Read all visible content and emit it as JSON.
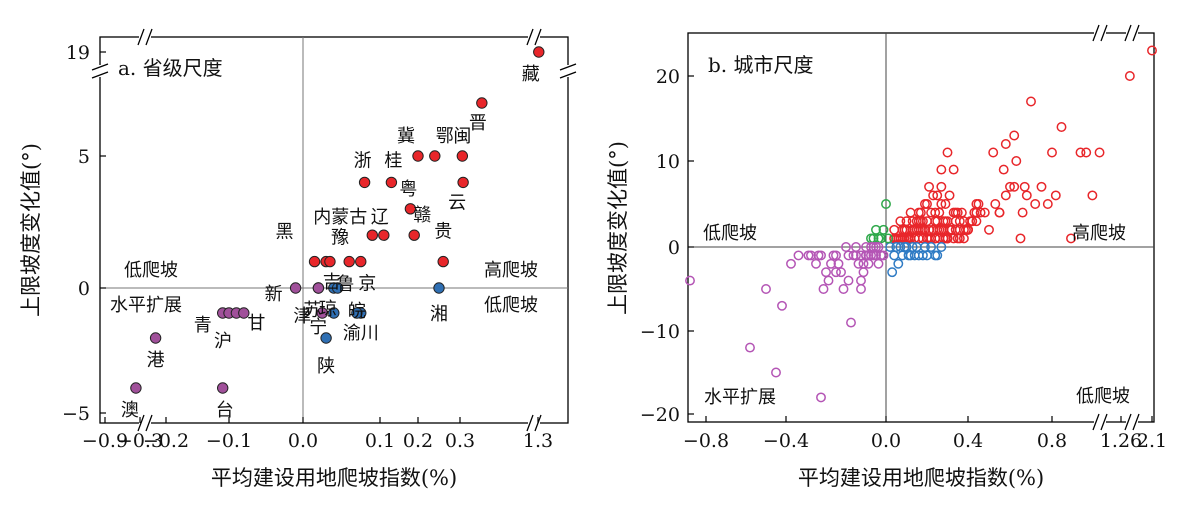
{
  "chart_data": [
    {
      "type": "scatter",
      "title": "a. 省级尺度",
      "xlabel": "平均建设用地爬坡指数(%)",
      "ylabel": "上限坡度变化值(°)",
      "x_ticks": [
        "−0.9",
        "−0.3",
        "−0.2",
        "−0.1",
        "0.0",
        "0.1",
        "0.2",
        "0.3",
        "1.3"
      ],
      "y_ticks": [
        "−5",
        "0",
        "5",
        "19"
      ],
      "x_axis_breaks": [
        -0.3,
        0.3
      ],
      "y_axis_breaks": [
        7
      ],
      "quadrant_labels": [
        "低爬坡",
        "水平扩展",
        "高爬坡",
        "低爬坡"
      ],
      "colors": {
        "high_climbing": "#e8262a",
        "low_climbing": "#2f6fb3",
        "horizontal_expansion": "#a0509a",
        "marker_edge": "#222222",
        "zero_line": "#777777"
      },
      "points": [
        {
          "label": "藏",
          "x": 1.31,
          "y": 19,
          "group": "high_climbing"
        },
        {
          "label": "晋",
          "x": 0.58,
          "y": 7,
          "group": "high_climbing"
        },
        {
          "label": "冀",
          "x": 0.2,
          "y": 5,
          "group": "high_climbing"
        },
        {
          "label": "鄂",
          "x": 0.24,
          "y": 5,
          "group": "high_climbing"
        },
        {
          "label": "闽",
          "x": 0.33,
          "y": 5,
          "group": "high_climbing"
        },
        {
          "label": "浙",
          "x": 0.08,
          "y": 4,
          "group": "high_climbing"
        },
        {
          "label": "桂",
          "x": 0.13,
          "y": 4,
          "group": "high_climbing"
        },
        {
          "label": "云",
          "x": 0.34,
          "y": 4,
          "group": "high_climbing"
        },
        {
          "label": "粤",
          "x": 0.18,
          "y": 3,
          "group": "high_climbing"
        },
        {
          "label": "内蒙古",
          "x": 0.09,
          "y": 2,
          "group": "high_climbing"
        },
        {
          "label": "辽",
          "x": 0.11,
          "y": 2,
          "group": "high_climbing"
        },
        {
          "label": "赣",
          "x": 0.19,
          "y": 2,
          "group": "high_climbing"
        },
        {
          "label": "黑",
          "x": 0.015,
          "y": 1,
          "group": "high_climbing"
        },
        {
          "label": "豫",
          "x": 0.03,
          "y": 1,
          "group": "high_climbing"
        },
        {
          "label": "",
          "x": 0.035,
          "y": 1,
          "group": "high_climbing"
        },
        {
          "label": "京",
          "x": 0.06,
          "y": 1,
          "group": "high_climbing"
        },
        {
          "label": "",
          "x": 0.075,
          "y": 1,
          "group": "high_climbing"
        },
        {
          "label": "贵",
          "x": 0.26,
          "y": 1,
          "group": "high_climbing"
        },
        {
          "label": "苏",
          "x": 0.02,
          "y": 0,
          "group": "low_climbing"
        },
        {
          "label": "吉",
          "x": 0.04,
          "y": 0,
          "group": "low_climbing"
        },
        {
          "label": "鲁",
          "x": 0.045,
          "y": 0,
          "group": "low_climbing"
        },
        {
          "label": "湘",
          "x": 0.25,
          "y": 0,
          "group": "low_climbing"
        },
        {
          "label": "琼",
          "x": 0.04,
          "y": -1,
          "group": "low_climbing"
        },
        {
          "label": "皖",
          "x": 0.075,
          "y": -1,
          "group": "low_climbing"
        },
        {
          "label": "渝川",
          "x": 0.07,
          "y": -1,
          "group": "low_climbing"
        },
        {
          "label": "陕",
          "x": 0.03,
          "y": -2,
          "group": "low_climbing"
        },
        {
          "label": "新",
          "x": -0.01,
          "y": 0,
          "group": "horizontal_expansion"
        },
        {
          "label": "津",
          "x": 0.02,
          "y": 0,
          "group": "horizontal_expansion"
        },
        {
          "label": "宁",
          "x": 0.025,
          "y": -1,
          "group": "horizontal_expansion"
        },
        {
          "label": "青",
          "x": -0.11,
          "y": -1,
          "group": "horizontal_expansion"
        },
        {
          "label": "沪",
          "x": -0.1,
          "y": -1,
          "group": "horizontal_expansion"
        },
        {
          "label": "甘",
          "x": -0.09,
          "y": -1,
          "group": "horizontal_expansion"
        },
        {
          "label": "",
          "x": -0.08,
          "y": -1,
          "group": "horizontal_expansion"
        },
        {
          "label": "港",
          "x": -0.24,
          "y": -2,
          "group": "horizontal_expansion"
        },
        {
          "label": "澳",
          "x": -0.37,
          "y": -4,
          "group": "horizontal_expansion"
        },
        {
          "label": "台",
          "x": -0.11,
          "y": -4,
          "group": "horizontal_expansion"
        }
      ]
    },
    {
      "type": "scatter",
      "title": "b. 城市尺度",
      "xlabel": "平均建设用地爬坡指数(%)",
      "ylabel": "上限坡度变化值(°)",
      "x_ticks": [
        "−0.8",
        "−0.4",
        "0.0",
        "0.4",
        "0.8",
        "1.26",
        "2.1"
      ],
      "y_ticks": [
        "−20",
        "−10",
        "0",
        "10",
        "20"
      ],
      "ylim": [
        -20,
        24
      ],
      "quadrant_labels": [
        "低爬坡",
        "高爬坡",
        "水平扩展",
        "低爬坡"
      ],
      "colors": {
        "high_climbing": "#e8262a",
        "low_climbing": "#2f7bc4",
        "horizontal_expansion": "#b455b5",
        "other": "#2ea84a",
        "zero_line": "#444444"
      },
      "series": [
        {
          "group": "high_climbing",
          "x": [
            0.05,
            0.08,
            0.1,
            0.12,
            0.15,
            0.17,
            0.2,
            0.22,
            0.25,
            0.28,
            0.3,
            0.32,
            0.35,
            0.38,
            0.4,
            0.42,
            0.45,
            0.07,
            0.09,
            0.11,
            0.13,
            0.14,
            0.16,
            0.18,
            0.19,
            0.21,
            0.23,
            0.24,
            0.26,
            0.27,
            0.29,
            0.31,
            0.33,
            0.34,
            0.36,
            0.37,
            0.39,
            0.41,
            0.43,
            0.44,
            0.06,
            0.1,
            0.14,
            0.18,
            0.22,
            0.26,
            0.3,
            0.34,
            0.38,
            0.12,
            0.16,
            0.2,
            0.24,
            0.28,
            0.32,
            0.36,
            0.4,
            0.44,
            0.08,
            0.12,
            0.16,
            0.2,
            0.24,
            0.28,
            0.3,
            0.35,
            0.25,
            0.27,
            0.29,
            0.31,
            0.33,
            0.23,
            0.21,
            0.19,
            0.17,
            0.15,
            0.13,
            0.11,
            0.09,
            0.07,
            0.05,
            0.04,
            0.04,
            0.05,
            0.06,
            0.07,
            0.08,
            0.09,
            0.1,
            0.11,
            0.12,
            0.13,
            0.14,
            0.15,
            0.16,
            0.17,
            0.18,
            0.19,
            0.2,
            0.21,
            0.22,
            0.23,
            0.24,
            0.25,
            0.26,
            0.27,
            0.28,
            0.29,
            0.3,
            0.32,
            0.34,
            0.36,
            0.38,
            0.4,
            0.42,
            0.5,
            0.52,
            0.55,
            0.55,
            0.57,
            0.58,
            0.6,
            0.62,
            0.63,
            0.65,
            0.67,
            0.66,
            0.7,
            0.75,
            0.78,
            0.8,
            0.82,
            0.85,
            0.9,
            0.95,
            0.98,
            1.02,
            1.08,
            1.5,
            2.1,
            0.44,
            0.48,
            0.53,
            0.58,
            0.62,
            0.68,
            0.72,
            0.46,
            0.3,
            0.33,
            0.27
          ],
          "y": [
            1,
            2,
            3,
            4,
            2,
            3,
            5,
            4,
            3,
            2,
            1,
            2,
            4,
            3,
            2,
            3,
            5,
            1,
            2,
            1,
            3,
            2,
            4,
            3,
            2,
            1,
            2,
            3,
            4,
            5,
            3,
            2,
            1,
            2,
            3,
            4,
            2,
            3,
            4,
            5,
            1,
            2,
            1,
            2,
            1,
            2,
            3,
            4,
            2,
            1,
            2,
            3,
            4,
            3,
            2,
            1,
            2,
            3,
            1,
            1,
            1,
            1,
            1,
            1,
            1,
            1,
            6,
            7,
            5,
            6,
            4,
            6,
            7,
            5,
            4,
            3,
            2,
            1,
            2,
            3,
            1,
            2,
            1,
            1,
            1,
            1,
            1,
            1,
            1,
            1,
            1,
            2,
            1,
            2,
            3,
            2,
            1,
            2,
            1,
            2,
            1,
            2,
            1,
            2,
            1,
            2,
            1,
            1,
            1,
            2,
            3,
            2,
            1,
            2,
            3,
            2,
            11,
            4,
            4,
            9,
            12,
            7,
            13,
            10,
            1,
            7,
            4,
            17,
            7,
            5,
            11,
            6,
            14,
            1,
            11,
            11,
            6,
            11,
            20,
            23,
            4,
            4,
            5,
            6,
            7,
            6,
            5,
            4,
            11,
            9,
            9
          ]
        },
        {
          "group": "low_climbing",
          "x": [
            0.02,
            0.05,
            0.08,
            0.1,
            0.12,
            0.15,
            0.18,
            0.2,
            0.22,
            0.25,
            0.27,
            0.03,
            0.06,
            0.09,
            0.13,
            0.16,
            0.19,
            0.24,
            0.04,
            0.07,
            0.11,
            0.14
          ],
          "y": [
            0,
            0,
            -1,
            0,
            -1,
            0,
            -1,
            -1,
            0,
            -1,
            0,
            -3,
            -2,
            0,
            0,
            -1,
            0,
            -1,
            -1,
            0,
            -1,
            -1
          ]
        },
        {
          "group": "other",
          "x": [
            -0.05,
            -0.04,
            -0.02,
            -0.01,
            0.0,
            -0.03,
            0.01,
            -0.06
          ],
          "y": [
            1,
            2,
            1,
            2,
            5,
            1,
            1,
            1
          ]
        },
        {
          "group": "horizontal_expansion",
          "x": [
            -0.88,
            -0.58,
            -0.5,
            -0.45,
            -0.42,
            -0.38,
            -0.35,
            -0.3,
            -0.27,
            -0.26,
            -0.25,
            -0.23,
            -0.22,
            -0.2,
            -0.18,
            -0.17,
            -0.15,
            -0.14,
            -0.12,
            -0.11,
            -0.1,
            -0.09,
            -0.08,
            -0.07,
            -0.06,
            -0.05,
            -0.04,
            -0.03,
            -0.02,
            -0.01,
            -0.12,
            -0.1,
            -0.08,
            -0.06,
            -0.05,
            -0.03,
            -0.02,
            -0.09,
            -0.07,
            -0.04,
            -0.13,
            -0.16,
            -0.19,
            -0.21,
            -0.24,
            -0.28,
            -0.31,
            -0.26,
            -0.15,
            -0.2,
            -0.1,
            -0.08
          ],
          "y": [
            -4,
            -12,
            -5,
            -15,
            -7,
            -2,
            -1,
            -1,
            -1,
            -18,
            -5,
            -4,
            -2,
            -1,
            -3,
            -5,
            -4,
            -9,
            -1,
            -2,
            -5,
            -3,
            -1,
            -2,
            -1,
            0,
            -1,
            -2,
            -1,
            -1,
            0,
            -1,
            0,
            0,
            -1,
            0,
            -1,
            -2,
            -1,
            0,
            -1,
            0,
            -2,
            -1,
            -3,
            -2,
            -1,
            -1,
            -1,
            -3,
            -4,
            -1
          ]
        }
      ]
    }
  ]
}
